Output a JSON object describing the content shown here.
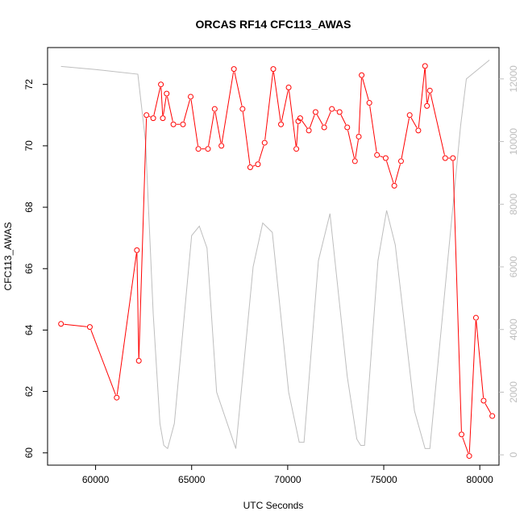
{
  "chart_data": {
    "type": "line",
    "title": "ORCAS RF14 CFC113_AWAS",
    "xlabel": "UTC Seconds",
    "ylabel": "CFC113_AWAS",
    "ylabel_right": "",
    "xlim": [
      57500,
      81000
    ],
    "ylim": [
      59.6,
      73.2
    ],
    "ylim_right": [
      -330,
      13000
    ],
    "x_ticks": [
      60000,
      65000,
      70000,
      75000,
      80000
    ],
    "y_ticks": [
      60,
      62,
      64,
      66,
      68,
      70,
      72
    ],
    "y_ticks_right": [
      0,
      2000,
      4000,
      6000,
      8000,
      10000,
      12000
    ],
    "grid": false,
    "colors": {
      "primary": "#ff0000",
      "secondary": "#bebebe",
      "axis": "#000000",
      "axis_right": "#bebebe"
    },
    "series": [
      {
        "axis": "left",
        "style": "line-with-open-circles",
        "x": [
          58200,
          59700,
          61100,
          62150,
          62250,
          62650,
          63000,
          63400,
          63500,
          63700,
          64050,
          64550,
          64950,
          65350,
          65850,
          66200,
          66550,
          67200,
          67650,
          68050,
          68450,
          68800,
          69250,
          69650,
          70050,
          70450,
          70550,
          70650,
          71100,
          71450,
          71900,
          72300,
          72700,
          73100,
          73500,
          73700,
          73850,
          74250,
          74650,
          75100,
          75550,
          75900,
          76350,
          76800,
          77150,
          77250,
          77400,
          78200,
          78600,
          79050,
          79450,
          79800,
          80200,
          80650
        ],
        "y": [
          64.2,
          64.1,
          61.8,
          66.6,
          63.0,
          71.0,
          70.9,
          72.0,
          70.9,
          71.7,
          70.7,
          70.7,
          71.6,
          69.9,
          69.9,
          71.2,
          70.0,
          72.5,
          71.2,
          69.3,
          69.4,
          70.1,
          72.5,
          70.7,
          71.9,
          69.9,
          70.8,
          70.9,
          70.5,
          71.1,
          70.6,
          71.2,
          71.1,
          70.6,
          69.5,
          70.3,
          72.3,
          71.4,
          69.7,
          69.6,
          68.7,
          69.5,
          71.0,
          70.5,
          72.6,
          71.3,
          71.8,
          69.6,
          69.6,
          60.6,
          59.9,
          64.4,
          61.7,
          61.2
        ]
      },
      {
        "axis": "right",
        "style": "line",
        "x": [
          58200,
          60000,
          62200,
          62600,
          63000,
          63350,
          63550,
          63750,
          64100,
          65000,
          65400,
          65800,
          66300,
          67300,
          68200,
          68700,
          69200,
          70050,
          70600,
          70850,
          71600,
          72200,
          73100,
          73600,
          73800,
          74000,
          74700,
          75150,
          75600,
          76600,
          77150,
          77400,
          78300,
          79000,
          79300,
          80500
        ],
        "y": [
          12400,
          12300,
          12150,
          10000,
          4500,
          1000,
          300,
          200,
          1000,
          7000,
          7300,
          6600,
          2000,
          200,
          6000,
          7400,
          7100,
          2000,
          400,
          400,
          6200,
          7700,
          2500,
          500,
          300,
          300,
          6200,
          7800,
          6700,
          1400,
          200,
          200,
          6000,
          10500,
          12000,
          12600
        ]
      }
    ]
  }
}
